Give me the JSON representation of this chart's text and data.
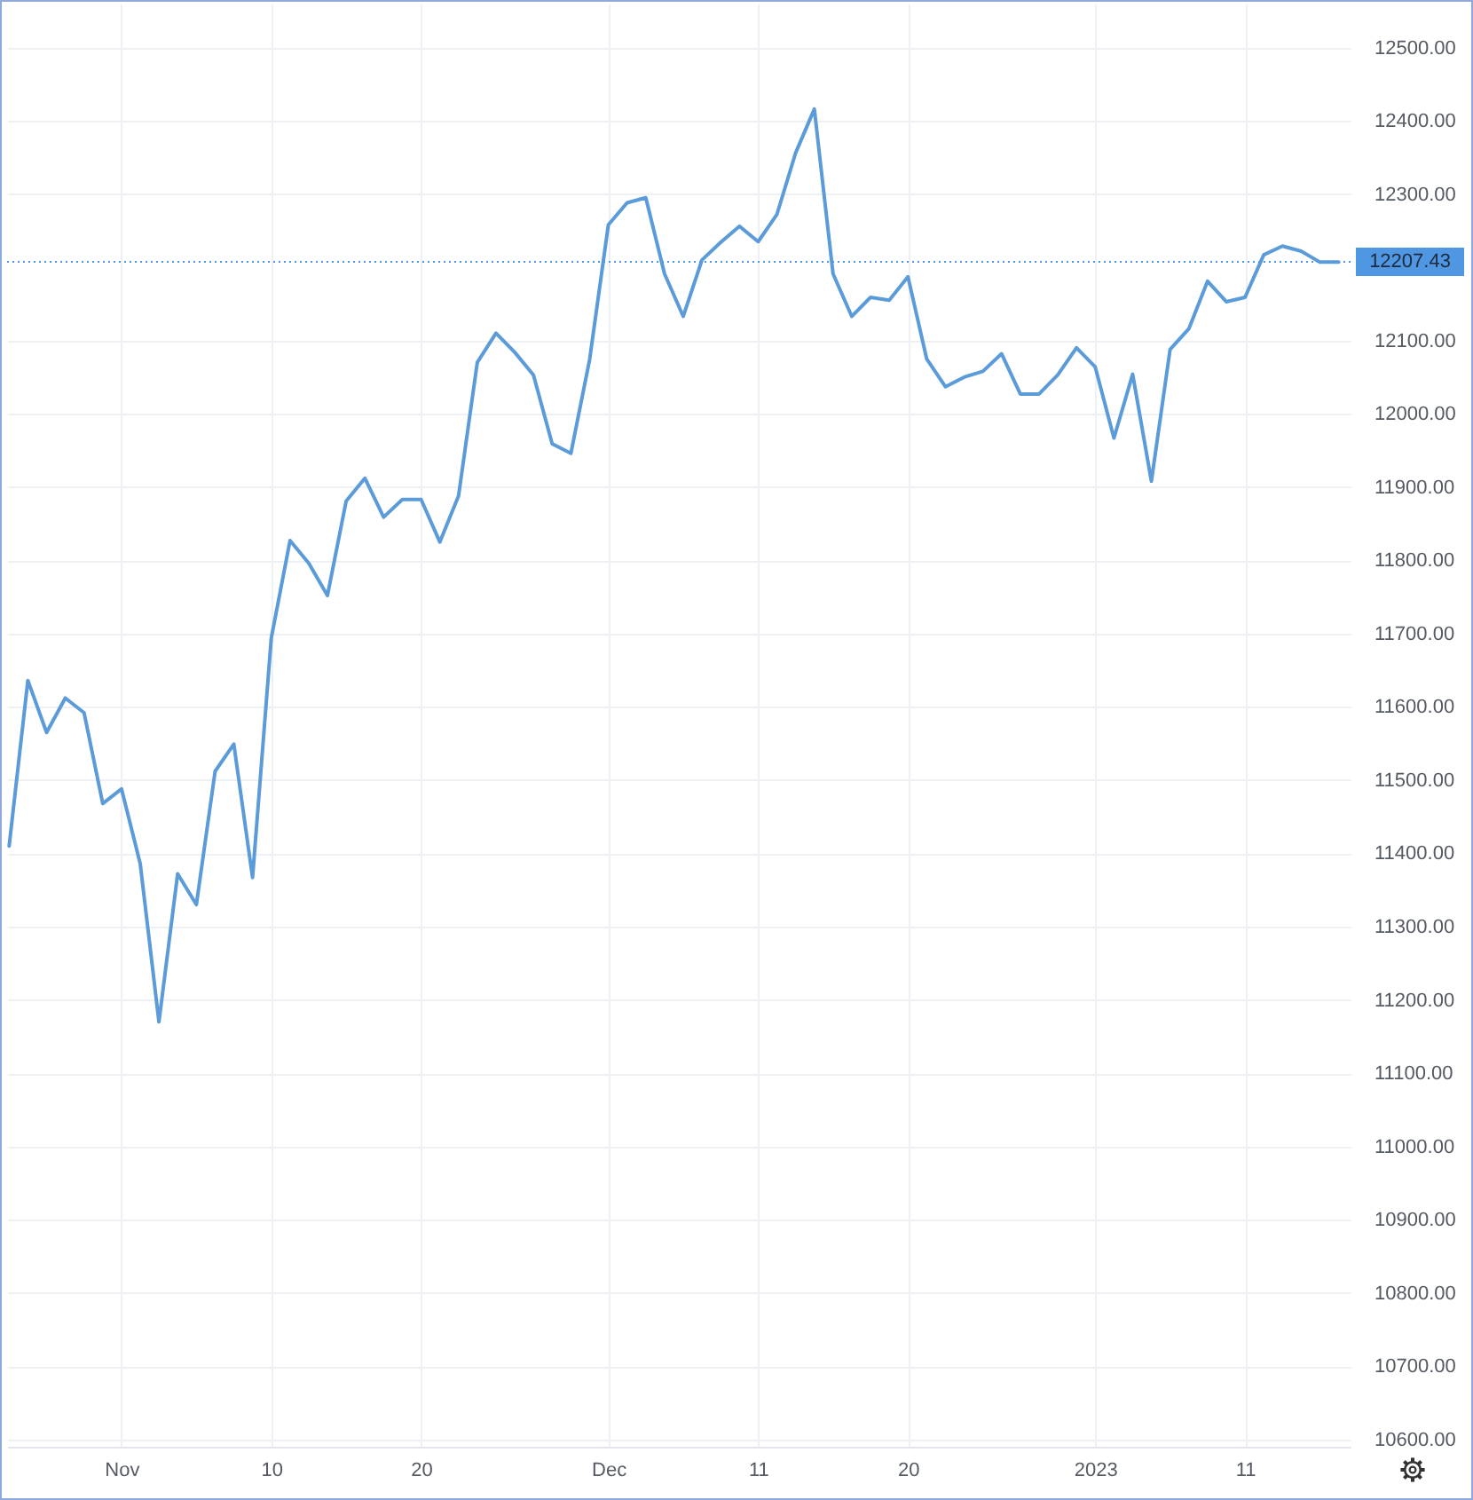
{
  "chart_data": {
    "type": "line",
    "categories": [
      null,
      null,
      null,
      null,
      null,
      null,
      "Nov",
      null,
      null,
      null,
      null,
      null,
      null,
      null,
      "10",
      null,
      null,
      null,
      null,
      null,
      null,
      null,
      "20",
      null,
      null,
      null,
      null,
      null,
      null,
      null,
      null,
      null,
      "Dec",
      null,
      null,
      null,
      null,
      null,
      null,
      null,
      "11",
      null,
      null,
      null,
      null,
      null,
      null,
      null,
      "20",
      null,
      null,
      null,
      null,
      null,
      null,
      null,
      null,
      null,
      "2023",
      null,
      null,
      null,
      null,
      null,
      null,
      null,
      "11",
      null,
      null,
      null,
      null,
      null
    ],
    "values": [
      11410,
      11636,
      11565,
      11612,
      11592,
      11468,
      11488,
      11386,
      11170,
      11372,
      11330,
      11512,
      11549,
      11367,
      11694,
      11827,
      11796,
      11752,
      11881,
      11912,
      11859,
      11883,
      11883,
      11825,
      11888,
      12070,
      12110,
      12084,
      12053,
      11959,
      11946,
      12074,
      12258,
      12288,
      12295,
      12191,
      12133,
      12210,
      12234,
      12256,
      12235,
      12272,
      12356,
      12416,
      12191,
      12133,
      12159,
      12155,
      12187,
      12075,
      12037,
      12050,
      12058,
      12082,
      12027,
      12027,
      12053,
      12090,
      12064,
      11967,
      12054,
      11908,
      12088,
      12116,
      12181,
      12153,
      12159,
      12217,
      12229,
      12222,
      12207,
      12207
    ],
    "color": "#5b9bd9",
    "line_style": "solid",
    "ylim": [
      10590,
      12560
    ],
    "yticks": [
      {
        "value": 10600,
        "label": "10600.00"
      },
      {
        "value": 10700,
        "label": "10700.00"
      },
      {
        "value": 10800,
        "label": "10800.00"
      },
      {
        "value": 10900,
        "label": "10900.00"
      },
      {
        "value": 11000,
        "label": "11000.00"
      },
      {
        "value": 11100,
        "label": "11100.00"
      },
      {
        "value": 11200,
        "label": "11200.00"
      },
      {
        "value": 11300,
        "label": "11300.00"
      },
      {
        "value": 11400,
        "label": "11400.00"
      },
      {
        "value": 11500,
        "label": "11500.00"
      },
      {
        "value": 11600,
        "label": "11600.00"
      },
      {
        "value": 11700,
        "label": "11700.00"
      },
      {
        "value": 11800,
        "label": "11800.00"
      },
      {
        "value": 11900,
        "label": "11900.00"
      },
      {
        "value": 12000,
        "label": "12000.00"
      },
      {
        "value": 12100,
        "label": "12100.00"
      },
      {
        "value": 12300,
        "label": "12300.00"
      },
      {
        "value": 12400,
        "label": "12400.00"
      },
      {
        "value": 12500,
        "label": "12500.00"
      }
    ],
    "grid": true,
    "ref_lines": [
      {
        "axis": "y",
        "value": 12207.43,
        "label": "12207.43",
        "color": "#4f97e3",
        "line_style": "dotted"
      }
    ]
  }
}
